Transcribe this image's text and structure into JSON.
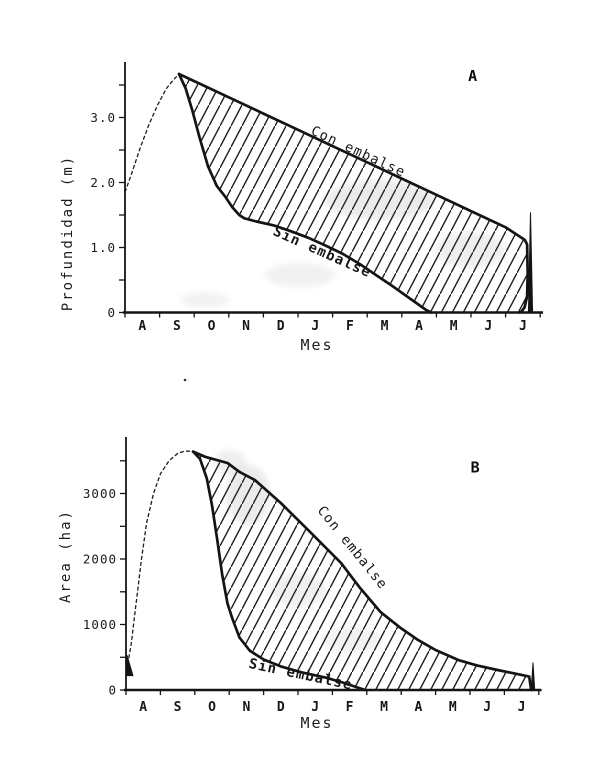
{
  "page": {
    "kind": "scanned scientific figure, two stacked hydrographs",
    "background": "#ffffff",
    "ink": "#1c1c1c"
  },
  "chart_data": [
    {
      "type": "line",
      "panel_label": "A",
      "title": "",
      "xlabel": "Mes",
      "ylabel": "Profundidad (m)",
      "x_categories": [
        "A",
        "S",
        "O",
        "N",
        "D",
        "J",
        "F",
        "M",
        "A",
        "M",
        "J",
        "J"
      ],
      "xlim": [
        0,
        12.1
      ],
      "ylim": [
        0,
        3.85
      ],
      "y_unit": "m",
      "y_major_ticks": [
        {
          "v": 0,
          "label": "0"
        },
        {
          "v": 1,
          "label": "1.0"
        },
        {
          "v": 2,
          "label": "2.0"
        },
        {
          "v": 3,
          "label": "3.0"
        }
      ],
      "y_minor_step": 0.5,
      "grid": false,
      "legend_position": "labels drawn along curves",
      "hatch_between": [
        "Con embalse",
        "Sin embalse"
      ],
      "series": [
        {
          "name": "crecida",
          "role": "common-rise",
          "style": "thin-dashed",
          "points": [
            [
              0,
              1.85
            ],
            [
              0.2,
              2.15
            ],
            [
              0.45,
              2.55
            ],
            [
              0.7,
              2.9
            ],
            [
              0.95,
              3.2
            ],
            [
              1.2,
              3.45
            ],
            [
              1.4,
              3.58
            ],
            [
              1.56,
              3.67
            ]
          ]
        },
        {
          "name": "Sin embalse",
          "role": "lower-bound",
          "style": "thick",
          "points": [
            [
              1.56,
              3.67
            ],
            [
              1.75,
              3.45
            ],
            [
              1.95,
              3.1
            ],
            [
              2.15,
              2.7
            ],
            [
              2.4,
              2.25
            ],
            [
              2.65,
              1.95
            ],
            [
              2.9,
              1.78
            ],
            [
              3.1,
              1.62
            ],
            [
              3.3,
              1.5
            ],
            [
              3.45,
              1.45
            ],
            [
              3.8,
              1.4
            ],
            [
              4.3,
              1.34
            ],
            [
              4.8,
              1.25
            ],
            [
              5.3,
              1.15
            ],
            [
              5.8,
              1.03
            ],
            [
              6.3,
              0.9
            ],
            [
              6.8,
              0.74
            ],
            [
              7.3,
              0.56
            ],
            [
              7.8,
              0.38
            ],
            [
              8.3,
              0.19
            ],
            [
              8.7,
              0.04
            ],
            [
              8.85,
              0
            ]
          ]
        },
        {
          "name": "Con embalse",
          "role": "upper-bound",
          "style": "thick",
          "points": [
            [
              1.56,
              3.67
            ],
            [
              2,
              3.56
            ],
            [
              3,
              3.31
            ],
            [
              4,
              3.06
            ],
            [
              5,
              2.81
            ],
            [
              6,
              2.56
            ],
            [
              7,
              2.31
            ],
            [
              8,
              2.06
            ],
            [
              9,
              1.81
            ],
            [
              10,
              1.56
            ],
            [
              11,
              1.31
            ],
            [
              11.55,
              1.12
            ],
            [
              11.62,
              1.05
            ],
            [
              11.64,
              0.6
            ],
            [
              11.62,
              0.25
            ],
            [
              11.55,
              0.08
            ],
            [
              11.45,
              0.01
            ],
            [
              11.4,
              0
            ]
          ]
        },
        {
          "name": "end-spike",
          "role": "next-flood-artifact",
          "style": "spike",
          "points": [
            [
              11.66,
              0
            ],
            [
              11.72,
              1.54
            ],
            [
              11.78,
              0
            ]
          ]
        }
      ],
      "annotations": [
        {
          "text": "Con embalse",
          "x": 5.35,
          "y": 2.75,
          "rotation": 25,
          "bold": false,
          "size": 13.5
        },
        {
          "text": "Sin embalse",
          "x": 4.25,
          "y": 1.2,
          "rotation": 24,
          "bold": true,
          "size": 14
        },
        {
          "text": "A",
          "x": 10.05,
          "y": 3.56,
          "rotation": 0,
          "bold": true,
          "size": 15
        }
      ]
    },
    {
      "type": "line",
      "panel_label": "B",
      "title": "",
      "xlabel": "Mes",
      "ylabel": "Area (ha)",
      "x_categories": [
        "A",
        "S",
        "O",
        "N",
        "D",
        "J",
        "F",
        "M",
        "A",
        "M",
        "J",
        "J"
      ],
      "xlim": [
        0,
        12.1
      ],
      "ylim": [
        0,
        3860
      ],
      "y_unit": "ha",
      "y_major_ticks": [
        {
          "v": 0,
          "label": "0"
        },
        {
          "v": 1000,
          "label": "1000"
        },
        {
          "v": 2000,
          "label": "2000"
        },
        {
          "v": 3000,
          "label": "3000"
        }
      ],
      "y_minor_step": 500,
      "grid": false,
      "legend_position": "labels drawn along curves",
      "hatch_between": [
        "Con embalse",
        "Sin embalse"
      ],
      "series": [
        {
          "name": "crecida",
          "role": "common-rise",
          "style": "thin-dashed",
          "points": [
            [
              0.02,
              300
            ],
            [
              0.15,
              700
            ],
            [
              0.3,
              1350
            ],
            [
              0.45,
              2000
            ],
            [
              0.6,
              2550
            ],
            [
              0.8,
              3000
            ],
            [
              1,
              3300
            ],
            [
              1.25,
              3500
            ],
            [
              1.5,
              3610
            ],
            [
              1.72,
              3650
            ],
            [
              1.95,
              3640
            ]
          ]
        },
        {
          "name": "start-mark",
          "role": "scan-artifact",
          "style": "spike",
          "points": [
            [
              0.03,
              530
            ],
            [
              0.03,
              220
            ],
            [
              0.2,
              220
            ]
          ]
        },
        {
          "name": "Sin embalse",
          "role": "lower-bound",
          "style": "thick",
          "points": [
            [
              1.95,
              3640
            ],
            [
              2.15,
              3530
            ],
            [
              2.35,
              3230
            ],
            [
              2.5,
              2820
            ],
            [
              2.65,
              2300
            ],
            [
              2.8,
              1750
            ],
            [
              2.95,
              1320
            ],
            [
              3.1,
              1080
            ],
            [
              3.3,
              800
            ],
            [
              3.6,
              600
            ],
            [
              4,
              465
            ],
            [
              4.5,
              360
            ],
            [
              5.1,
              270
            ],
            [
              5.8,
              190
            ],
            [
              6.3,
              115
            ],
            [
              6.7,
              45
            ],
            [
              6.95,
              0
            ]
          ]
        },
        {
          "name": "Con embalse",
          "role": "upper-bound",
          "style": "thick",
          "points": [
            [
              1.95,
              3640
            ],
            [
              2.3,
              3560
            ],
            [
              2.95,
              3465
            ],
            [
              3.3,
              3330
            ],
            [
              3.75,
              3205
            ],
            [
              4.5,
              2855
            ],
            [
              5.3,
              2440
            ],
            [
              6.25,
              1940
            ],
            [
              6.8,
              1560
            ],
            [
              7.4,
              1190
            ],
            [
              8,
              940
            ],
            [
              8.5,
              760
            ],
            [
              9,
              610
            ],
            [
              9.65,
              460
            ],
            [
              10.2,
              375
            ],
            [
              10.8,
              305
            ],
            [
              11.5,
              230
            ],
            [
              11.72,
              205
            ],
            [
              11.75,
              100
            ],
            [
              11.78,
              0
            ]
          ]
        },
        {
          "name": "end-spike",
          "role": "next-flood-artifact",
          "style": "spike",
          "points": [
            [
              11.78,
              0
            ],
            [
              11.83,
              420
            ],
            [
              11.88,
              0
            ]
          ]
        }
      ],
      "annotations": [
        {
          "text": "Con embalse",
          "x": 5.55,
          "y": 2740,
          "rotation": 51,
          "bold": false,
          "size": 13.5
        },
        {
          "text": "Sin embalse",
          "x": 3.55,
          "y": 340,
          "rotation": 12,
          "bold": true,
          "size": 14
        },
        {
          "text": "B",
          "x": 10.15,
          "y": 3320,
          "rotation": 0,
          "bold": true,
          "size": 15
        }
      ]
    }
  ]
}
